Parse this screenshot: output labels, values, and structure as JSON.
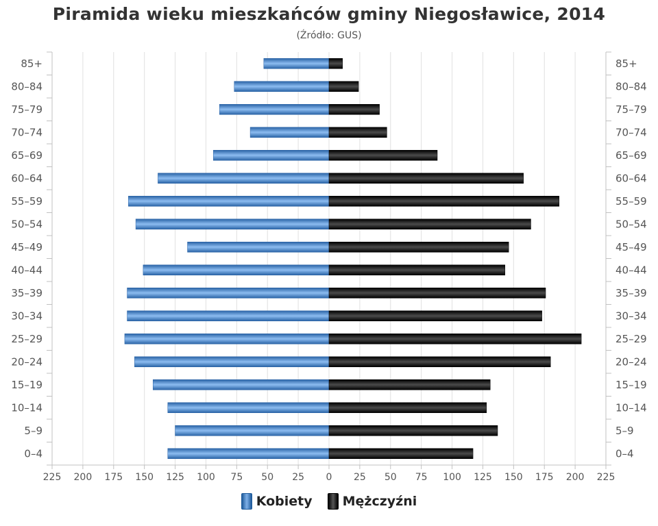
{
  "chart_data": {
    "type": "bar",
    "title": "Piramida wieku mieszkańców gminy Niegosławice, 2014",
    "subtitle": "(Źródło: GUS)",
    "categories": [
      "85+",
      "80–84",
      "75–79",
      "70–74",
      "65–69",
      "60–64",
      "55–59",
      "50–54",
      "45–49",
      "40–44",
      "35–39",
      "30–34",
      "25–29",
      "20–24",
      "15–19",
      "10–14",
      "5–9",
      "0–4"
    ],
    "x_ticks": [
      "225",
      "200",
      "175",
      "150",
      "125",
      "100",
      "75",
      "50",
      "25",
      "0",
      "25",
      "50",
      "75",
      "100",
      "125",
      "150",
      "175",
      "200",
      "225"
    ],
    "xlim": [
      -225,
      225
    ],
    "grid": true,
    "legend_position": "bottom",
    "series": [
      {
        "name": "Kobiety",
        "side": "left",
        "color": "#3a78c0",
        "values": [
          53,
          77,
          89,
          64,
          94,
          139,
          163,
          157,
          115,
          151,
          164,
          164,
          166,
          158,
          143,
          131,
          125,
          131
        ]
      },
      {
        "name": "Mężczyźni",
        "side": "right",
        "color": "#111111",
        "values": [
          11,
          24,
          41,
          47,
          88,
          158,
          187,
          164,
          146,
          143,
          176,
          173,
          205,
          180,
          131,
          128,
          137,
          117
        ]
      }
    ]
  }
}
